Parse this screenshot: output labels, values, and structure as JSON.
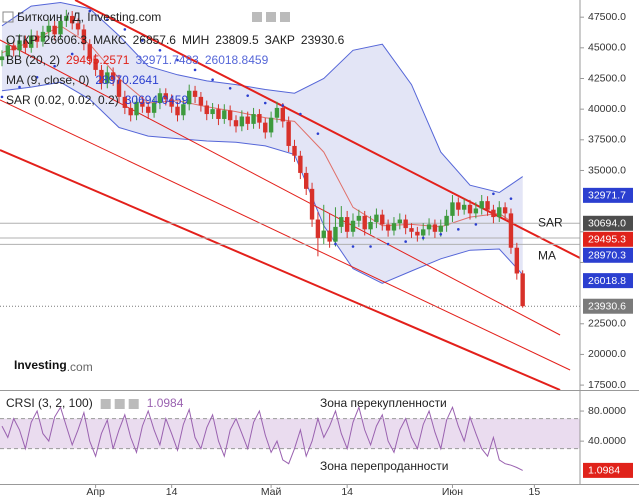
{
  "header": {
    "title": "Биткоин / Д, Investing.com",
    "ohlc_labels": [
      "ОТКР",
      "МАКС",
      "МИН",
      "ЗАКР"
    ]
  },
  "chart_data": [
    {
      "type": "candlestick",
      "xlim": [
        -0.34,
        98.8
      ],
      "ylim": [
        17100,
        48900
      ],
      "xticks": [
        {
          "value": 16,
          "label": "Апр"
        },
        {
          "value": 29,
          "label": "14"
        },
        {
          "value": 46,
          "label": "Май"
        },
        {
          "value": 59,
          "label": "14"
        },
        {
          "value": 77,
          "label": "Июн"
        },
        {
          "value": 91,
          "label": "15"
        }
      ],
      "yticks": [
        {
          "value": 47500,
          "label": "47500.0"
        },
        {
          "value": 45000,
          "label": "45000.0"
        },
        {
          "value": 42500,
          "label": "42500.0"
        },
        {
          "value": 40000,
          "label": "40000.0"
        },
        {
          "value": 37500,
          "label": "37500.0"
        },
        {
          "value": 35000,
          "label": "35000.0"
        },
        {
          "value": 30000,
          "label": "30000.0"
        },
        {
          "value": 27500,
          "label": "27500.0"
        },
        {
          "value": 22500,
          "label": "22500.0"
        },
        {
          "value": 20000,
          "label": "20000.0"
        },
        {
          "value": 17500,
          "label": "17500.0"
        }
      ],
      "up_color": "#3d9a3d",
      "down_color": "#d8312a",
      "open": [
        44000,
        44300,
        45200,
        44800,
        45600,
        45000,
        46000,
        45500,
        46300,
        46800,
        46100,
        47200,
        47600,
        47000,
        46500,
        45300,
        44100,
        43200,
        42100,
        43000,
        42400,
        41000,
        40100,
        39500,
        40600,
        40200,
        39700,
        40500,
        41300,
        40800,
        40200,
        39500,
        40400,
        41500,
        41000,
        40300,
        39600,
        40000,
        39200,
        39900,
        39100,
        38600,
        39400,
        38800,
        39600,
        38900,
        38100,
        39300,
        40100,
        39000,
        37000,
        36200,
        34800,
        33500,
        31000,
        29500,
        30100,
        29200,
        30400,
        31200,
        30000,
        30900,
        31300,
        30200,
        30800,
        31400,
        30600,
        30100,
        30700,
        31000,
        30300,
        30000,
        29700,
        30200,
        30600,
        30000,
        30500,
        31300,
        32400,
        31800,
        32200,
        31500,
        31900,
        32500,
        31800,
        31200,
        32000,
        31500,
        28700,
        26606.3
      ],
      "high": [
        44800,
        45700,
        45600,
        46100,
        46000,
        46500,
        46400,
        46800,
        47300,
        47200,
        47700,
        48100,
        48000,
        47400,
        46900,
        45700,
        44500,
        43600,
        43500,
        43400,
        42800,
        41500,
        40600,
        41100,
        41000,
        40600,
        41000,
        41700,
        41700,
        41200,
        40600,
        40900,
        42000,
        41900,
        41400,
        40700,
        40500,
        40400,
        40400,
        40300,
        39500,
        39900,
        39800,
        40100,
        40000,
        39300,
        39800,
        40600,
        40500,
        39400,
        37500,
        36600,
        35300,
        34000,
        31600,
        32200,
        31500,
        32000,
        32100,
        31700,
        31500,
        31800,
        31700,
        31300,
        31900,
        31800,
        31000,
        31200,
        31500,
        31400,
        30700,
        30400,
        30700,
        31100,
        31000,
        31000,
        31800,
        33000,
        32800,
        32700,
        32600,
        32400,
        33000,
        32900,
        32200,
        32500,
        32400,
        31900,
        29100,
        26857.6
      ],
      "low": [
        43500,
        43800,
        44300,
        44300,
        44500,
        44600,
        45000,
        45100,
        45800,
        45600,
        45700,
        46700,
        46500,
        46000,
        44800,
        43600,
        42700,
        41600,
        41700,
        41900,
        40500,
        39600,
        39000,
        39100,
        39700,
        39200,
        39300,
        40000,
        40300,
        39700,
        39000,
        39100,
        39900,
        40500,
        39800,
        39100,
        39200,
        38700,
        38800,
        38600,
        38100,
        38200,
        38300,
        38400,
        38400,
        37600,
        37700,
        38900,
        38500,
        36500,
        35700,
        34300,
        33000,
        30400,
        28000,
        29000,
        28700,
        28800,
        29900,
        29500,
        29600,
        30400,
        29700,
        29800,
        30300,
        30100,
        29600,
        29700,
        30200,
        29800,
        29500,
        29200,
        29300,
        29700,
        29500,
        29600,
        30000,
        30800,
        31300,
        31400,
        31000,
        31100,
        31400,
        31300,
        30700,
        30800,
        31000,
        28200,
        26100,
        23809.5
      ],
      "close": [
        44300,
        45200,
        44800,
        45600,
        45000,
        46000,
        45500,
        46300,
        46800,
        46100,
        47200,
        47600,
        47000,
        46500,
        45300,
        44100,
        43200,
        42100,
        43000,
        42400,
        41000,
        40100,
        39500,
        40600,
        40200,
        39700,
        40500,
        41300,
        40800,
        40200,
        39500,
        40400,
        41500,
        41000,
        40300,
        39600,
        40000,
        39200,
        39900,
        39100,
        38600,
        39400,
        38800,
        39600,
        38900,
        38100,
        39300,
        40100,
        39000,
        37000,
        36200,
        34800,
        33500,
        31000,
        29500,
        30100,
        29200,
        30400,
        31200,
        30000,
        30900,
        31300,
        30200,
        30800,
        31400,
        30600,
        30100,
        30700,
        31000,
        30300,
        30000,
        29700,
        30200,
        30600,
        30000,
        30500,
        31300,
        32400,
        31800,
        32200,
        31500,
        31900,
        32500,
        31800,
        31200,
        32000,
        31500,
        28700,
        26600,
        23930.6
      ],
      "bollinger": {
        "name": "BB (20, 2)",
        "color": "#5566d8",
        "fill": "#dcdff4",
        "mid_color": "#e0221a",
        "legend_values": [
          29495.2571,
          32971.7483,
          26018.8459
        ],
        "x": [
          0,
          5,
          10,
          15,
          20,
          25,
          30,
          35,
          40,
          45,
          50,
          55,
          60,
          65,
          70,
          75,
          80,
          85,
          89
        ],
        "upper": [
          46800,
          48400,
          48700,
          48200,
          46000,
          43500,
          42800,
          42300,
          42000,
          41600,
          41300,
          42500,
          44800,
          45300,
          42000,
          36500,
          33800,
          33200,
          34500
        ],
        "lower": [
          41500,
          41800,
          42200,
          40800,
          38500,
          37800,
          37600,
          37400,
          37300,
          37000,
          36300,
          30500,
          27000,
          25800,
          26800,
          27800,
          28500,
          28600,
          26500
        ]
      },
      "ma": {
        "name": "MA (9, close, 0)",
        "color": "#e0706a",
        "legend_value": 28970.2641,
        "x": [
          0,
          5,
          10,
          15,
          20,
          25,
          30,
          35,
          40,
          45,
          50,
          55,
          60,
          65,
          70,
          75,
          80,
          85,
          89
        ],
        "values": [
          44600,
          45500,
          46800,
          45300,
          42500,
          40500,
          40700,
          40200,
          39800,
          39300,
          39000,
          36500,
          32000,
          30500,
          30600,
          30400,
          31200,
          31500,
          30200
        ]
      },
      "sar": {
        "name": "SAR (0.02, 0.02, 0.2)",
        "color": "#2b3fd0",
        "legend_value": 30694.0459,
        "x": [
          0,
          3,
          6,
          9,
          12,
          15,
          18,
          21,
          24,
          27,
          30,
          33,
          36,
          39,
          42,
          45,
          48,
          51,
          54,
          57,
          60,
          63,
          66,
          69,
          72,
          75,
          78,
          81,
          84,
          87
        ],
        "values": [
          41000,
          41800,
          42600,
          43500,
          44500,
          48000,
          47300,
          46500,
          45600,
          44800,
          44000,
          43200,
          42400,
          41700,
          41100,
          40500,
          40300,
          39600,
          38000,
          29000,
          28800,
          28800,
          29000,
          29200,
          29500,
          29800,
          30200,
          30600,
          33100,
          32700
        ]
      },
      "channel": {
        "color": "#e3201b",
        "lines": [
          {
            "x": [
              12.5,
              98.8
            ],
            "y": [
              48900,
              27863
            ],
            "width": 2
          },
          {
            "x": [
              -0.34,
              95.4
            ],
            "y": [
              45638,
              21585
            ],
            "width": 1
          },
          {
            "x": [
              -0.34,
              97.1
            ],
            "y": [
              40746,
              18731
            ],
            "width": 1
          },
          {
            "x": [
              -0.34,
              95.4
            ],
            "y": [
              36669,
              17100
            ],
            "width": 2
          }
        ]
      },
      "badges": [
        {
          "value": 32971.7,
          "color": "#2b3fd0"
        },
        {
          "value": 30694,
          "label": "30694.0",
          "color": "#4d4d4d",
          "line": "solid"
        },
        {
          "value": 29495.3,
          "color": "#e0221a",
          "line": "solid"
        },
        {
          "value": 28970.3,
          "color": "#2b3fd0",
          "line": "solid"
        },
        {
          "value": 26018.8,
          "color": "#2b3fd0"
        },
        {
          "value": 23930.6,
          "color": "#7a7a7a",
          "line": "dotted"
        }
      ],
      "annotations": [
        {
          "text": "SAR",
          "value": 30694
        },
        {
          "text": "MA",
          "value": 28970.3
        }
      ],
      "logo": [
        "Investing",
        ".com"
      ]
    },
    {
      "type": "line",
      "name": "CRSI (3, 2, 100)",
      "color": "#9a62b0",
      "zone": [
        30,
        70
      ],
      "zone_color": "#eadcef",
      "xlim": [
        -0.34,
        98.8
      ],
      "ylim": [
        -17,
        104
      ],
      "yticks": [
        {
          "value": 80,
          "label": "80.0000"
        },
        {
          "value": 40,
          "label": "40.0000"
        }
      ],
      "values": [
        60,
        45,
        70,
        55,
        30,
        65,
        80,
        50,
        40,
        72,
        85,
        60,
        35,
        55,
        78,
        40,
        20,
        50,
        68,
        30,
        55,
        75,
        45,
        25,
        60,
        80,
        55,
        35,
        70,
        50,
        28,
        62,
        82,
        45,
        30,
        58,
        75,
        40,
        20,
        55,
        70,
        50,
        30,
        65,
        80,
        48,
        25,
        40,
        15,
        10,
        30,
        55,
        20,
        40,
        70,
        45,
        60,
        80,
        50,
        30,
        65,
        85,
        55,
        35,
        60,
        75,
        40,
        25,
        55,
        70,
        45,
        30,
        62,
        80,
        52,
        30,
        68,
        85,
        60,
        40,
        72,
        50,
        30,
        20,
        45,
        15,
        10,
        8,
        5,
        1.0984
      ],
      "annotations": [
        "Зона перекупленности",
        "Зона перепроданности"
      ]
    }
  ]
}
